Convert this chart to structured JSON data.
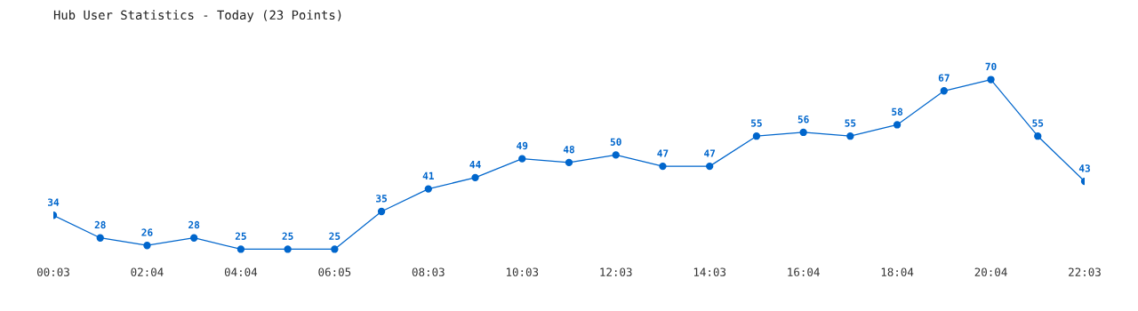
{
  "chart_data": {
    "type": "line",
    "title": "Hub User Statistics - Today (23 Points)",
    "categories": [
      "00:03",
      null,
      "02:04",
      null,
      "04:04",
      null,
      "06:05",
      null,
      "08:03",
      null,
      "10:03",
      null,
      "12:03",
      null,
      "14:03",
      null,
      "16:04",
      null,
      "18:04",
      null,
      "20:04",
      null,
      "22:03"
    ],
    "values": [
      34,
      28,
      26,
      28,
      25,
      25,
      25,
      35,
      41,
      44,
      49,
      48,
      50,
      47,
      47,
      55,
      56,
      55,
      58,
      67,
      70,
      55,
      43
    ],
    "color": "#0066cc",
    "marker": "circle",
    "line_style": "solid",
    "data_labels": true,
    "grid": false,
    "legend": false
  }
}
